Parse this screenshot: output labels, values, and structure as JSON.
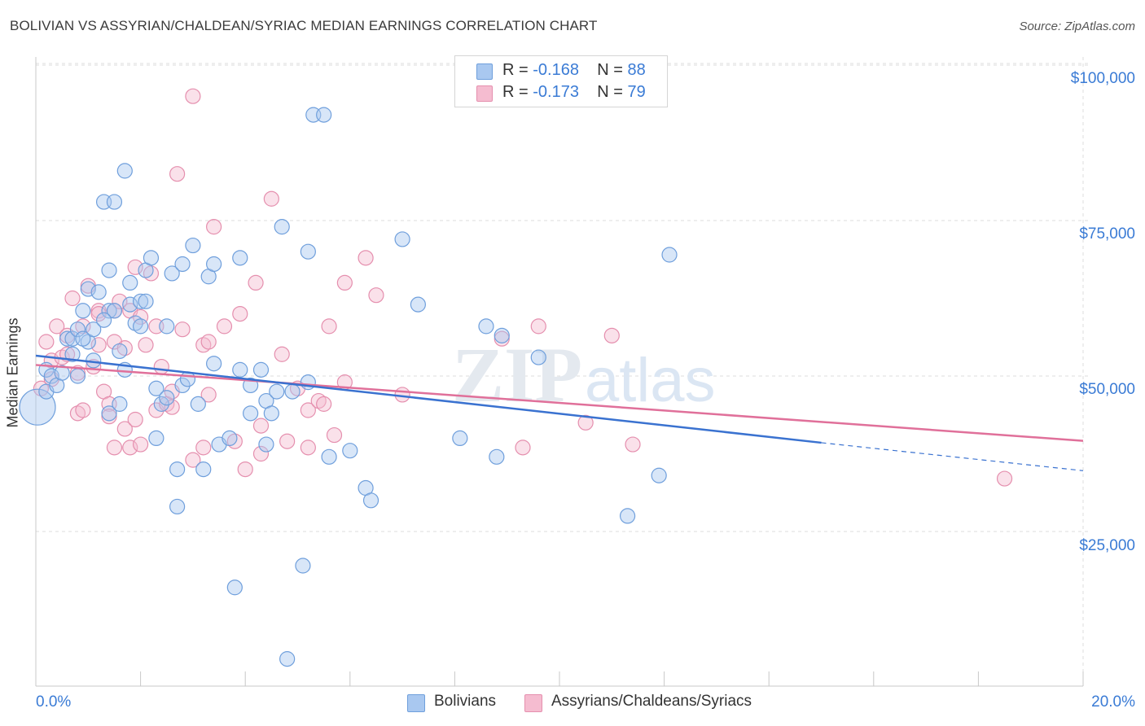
{
  "header": {
    "title": "BOLIVIAN VS ASSYRIAN/CHALDEAN/SYRIAC MEDIAN EARNINGS CORRELATION CHART",
    "source": "Source: ZipAtlas.com"
  },
  "legend_top": {
    "rows": [
      {
        "r_label": "R =",
        "r_value": "-0.168",
        "n_label": "N =",
        "n_value": "88"
      },
      {
        "r_label": "R =",
        "r_value": "-0.173",
        "n_label": "N =",
        "n_value": "79"
      }
    ]
  },
  "legend_bottom": {
    "items": [
      {
        "label": "Bolivians"
      },
      {
        "label": "Assyrians/Chaldeans/Syriacs"
      }
    ]
  },
  "axes": {
    "ylabel": "Median Earnings",
    "x_min_label": "0.0%",
    "x_max_label": "20.0%",
    "y_ticks": [
      "$100,000",
      "$75,000",
      "$50,000",
      "$25,000"
    ]
  },
  "colors": {
    "blue_fill": "#a9c8f0",
    "blue_stroke": "#6f9fdc",
    "blue_line": "#3a72d0",
    "pink_fill": "#f5bcd0",
    "pink_stroke": "#e58fae",
    "pink_line": "#e0709a",
    "grid": "#dddddd",
    "watermark": "#e4e9ef"
  },
  "chart_data": {
    "type": "scatter",
    "xlim": [
      0,
      20
    ],
    "ylim": [
      0,
      105000
    ],
    "x_unit": "%",
    "series": [
      {
        "name": "Bolivians",
        "color": "blue",
        "points": [
          [
            0.1,
            45000
          ],
          [
            0.2,
            51000
          ],
          [
            0.2,
            47500
          ],
          [
            0.3,
            50000
          ],
          [
            0.4,
            48500
          ],
          [
            0.5,
            50500
          ],
          [
            0.6,
            56000
          ],
          [
            0.7,
            53500
          ],
          [
            0.7,
            56000
          ],
          [
            0.8,
            50000
          ],
          [
            0.8,
            57500
          ],
          [
            0.9,
            60500
          ],
          [
            1.0,
            64000
          ],
          [
            1.0,
            55500
          ],
          [
            1.1,
            52500
          ],
          [
            1.1,
            57500
          ],
          [
            1.2,
            63500
          ],
          [
            1.3,
            78000
          ],
          [
            1.4,
            67000
          ],
          [
            1.4,
            44000
          ],
          [
            1.4,
            60500
          ],
          [
            1.5,
            78000
          ],
          [
            1.5,
            60500
          ],
          [
            1.6,
            45500
          ],
          [
            1.6,
            54000
          ],
          [
            1.7,
            83000
          ],
          [
            1.7,
            51000
          ],
          [
            1.8,
            65000
          ],
          [
            1.8,
            61500
          ],
          [
            1.9,
            58500
          ],
          [
            2.0,
            58000
          ],
          [
            2.0,
            62000
          ],
          [
            2.1,
            62000
          ],
          [
            2.1,
            67000
          ],
          [
            2.2,
            69000
          ],
          [
            2.3,
            48000
          ],
          [
            2.3,
            40000
          ],
          [
            2.4,
            45500
          ],
          [
            2.5,
            58000
          ],
          [
            2.5,
            46500
          ],
          [
            2.6,
            66500
          ],
          [
            2.7,
            29000
          ],
          [
            2.7,
            35000
          ],
          [
            2.8,
            48500
          ],
          [
            2.8,
            68000
          ],
          [
            2.9,
            49500
          ],
          [
            3.0,
            71000
          ],
          [
            3.1,
            45500
          ],
          [
            3.2,
            35000
          ],
          [
            3.3,
            66000
          ],
          [
            3.4,
            52000
          ],
          [
            3.4,
            68000
          ],
          [
            3.5,
            39000
          ],
          [
            3.7,
            40000
          ],
          [
            3.8,
            16000
          ],
          [
            3.9,
            69000
          ],
          [
            3.9,
            51000
          ],
          [
            4.1,
            48500
          ],
          [
            4.1,
            44000
          ],
          [
            4.3,
            51000
          ],
          [
            4.4,
            39000
          ],
          [
            4.4,
            46000
          ],
          [
            4.5,
            44000
          ],
          [
            4.6,
            47500
          ],
          [
            4.7,
            74000
          ],
          [
            4.8,
            4500
          ],
          [
            4.9,
            47500
          ],
          [
            5.1,
            19500
          ],
          [
            5.2,
            49000
          ],
          [
            5.2,
            70000
          ],
          [
            5.3,
            92000
          ],
          [
            5.5,
            92000
          ],
          [
            5.6,
            37000
          ],
          [
            6.0,
            38000
          ],
          [
            6.3,
            32000
          ],
          [
            6.4,
            30000
          ],
          [
            7.0,
            72000
          ],
          [
            7.3,
            61500
          ],
          [
            8.1,
            40000
          ],
          [
            8.6,
            58000
          ],
          [
            8.8,
            37000
          ],
          [
            8.9,
            56500
          ],
          [
            9.6,
            53000
          ],
          [
            11.3,
            27500
          ],
          [
            11.9,
            34000
          ],
          [
            12.1,
            69500
          ],
          [
            0.9,
            56000
          ],
          [
            1.3,
            59000
          ]
        ]
      },
      {
        "name": "Assyrians/Chaldeans/Syriacs",
        "color": "pink",
        "points": [
          [
            0.1,
            48000
          ],
          [
            0.2,
            55500
          ],
          [
            0.3,
            52500
          ],
          [
            0.4,
            58000
          ],
          [
            0.5,
            53000
          ],
          [
            0.6,
            53500
          ],
          [
            0.6,
            56500
          ],
          [
            0.7,
            62500
          ],
          [
            0.8,
            44000
          ],
          [
            0.8,
            50500
          ],
          [
            0.9,
            58000
          ],
          [
            0.9,
            44500
          ],
          [
            1.0,
            64500
          ],
          [
            1.1,
            51500
          ],
          [
            1.2,
            60500
          ],
          [
            1.2,
            55000
          ],
          [
            1.3,
            47500
          ],
          [
            1.4,
            45500
          ],
          [
            1.4,
            43500
          ],
          [
            1.5,
            55500
          ],
          [
            1.5,
            60500
          ],
          [
            1.5,
            38500
          ],
          [
            1.6,
            62000
          ],
          [
            1.7,
            41500
          ],
          [
            1.7,
            54500
          ],
          [
            1.8,
            38500
          ],
          [
            1.8,
            60500
          ],
          [
            1.9,
            67500
          ],
          [
            1.9,
            43000
          ],
          [
            2.0,
            39000
          ],
          [
            2.0,
            59500
          ],
          [
            2.1,
            55000
          ],
          [
            2.2,
            66500
          ],
          [
            2.3,
            58000
          ],
          [
            2.3,
            44500
          ],
          [
            2.4,
            51500
          ],
          [
            2.5,
            45500
          ],
          [
            2.6,
            47500
          ],
          [
            2.6,
            45000
          ],
          [
            2.7,
            82500
          ],
          [
            2.8,
            57500
          ],
          [
            3.0,
            36500
          ],
          [
            3.0,
            95000
          ],
          [
            3.2,
            55000
          ],
          [
            3.2,
            38500
          ],
          [
            3.3,
            47000
          ],
          [
            3.3,
            55500
          ],
          [
            3.4,
            74000
          ],
          [
            3.6,
            58000
          ],
          [
            3.8,
            39500
          ],
          [
            3.9,
            60000
          ],
          [
            4.0,
            35000
          ],
          [
            4.2,
            65000
          ],
          [
            4.3,
            37500
          ],
          [
            4.3,
            42000
          ],
          [
            4.5,
            78500
          ],
          [
            4.7,
            53500
          ],
          [
            4.8,
            39500
          ],
          [
            5.0,
            48000
          ],
          [
            5.2,
            44500
          ],
          [
            5.2,
            38500
          ],
          [
            5.4,
            46000
          ],
          [
            5.5,
            45500
          ],
          [
            5.6,
            58000
          ],
          [
            5.7,
            40500
          ],
          [
            5.9,
            65000
          ],
          [
            5.9,
            49000
          ],
          [
            6.3,
            69000
          ],
          [
            6.5,
            63000
          ],
          [
            7.0,
            47000
          ],
          [
            8.9,
            56000
          ],
          [
            9.3,
            38500
          ],
          [
            9.6,
            58000
          ],
          [
            10.5,
            42500
          ],
          [
            11.0,
            56500
          ],
          [
            11.4,
            39000
          ],
          [
            18.5,
            33500
          ],
          [
            0.3,
            49500
          ],
          [
            1.2,
            60000
          ]
        ]
      }
    ],
    "trendlines": [
      {
        "series": "Bolivians",
        "x": [
          0,
          15
        ],
        "y": [
          55500,
          41500
        ],
        "dashed_x": [
          15,
          20
        ],
        "dashed_y": [
          41500,
          37000
        ]
      },
      {
        "series": "Assyrians/Chaldeans/Syriacs",
        "x": [
          0,
          20
        ],
        "y": [
          54000,
          41800
        ]
      }
    ],
    "y_tick_values": [
      100000,
      75000,
      50000,
      25000
    ],
    "grid": true
  },
  "watermark": {
    "part1": "ZIP",
    "part2": "atlas"
  }
}
